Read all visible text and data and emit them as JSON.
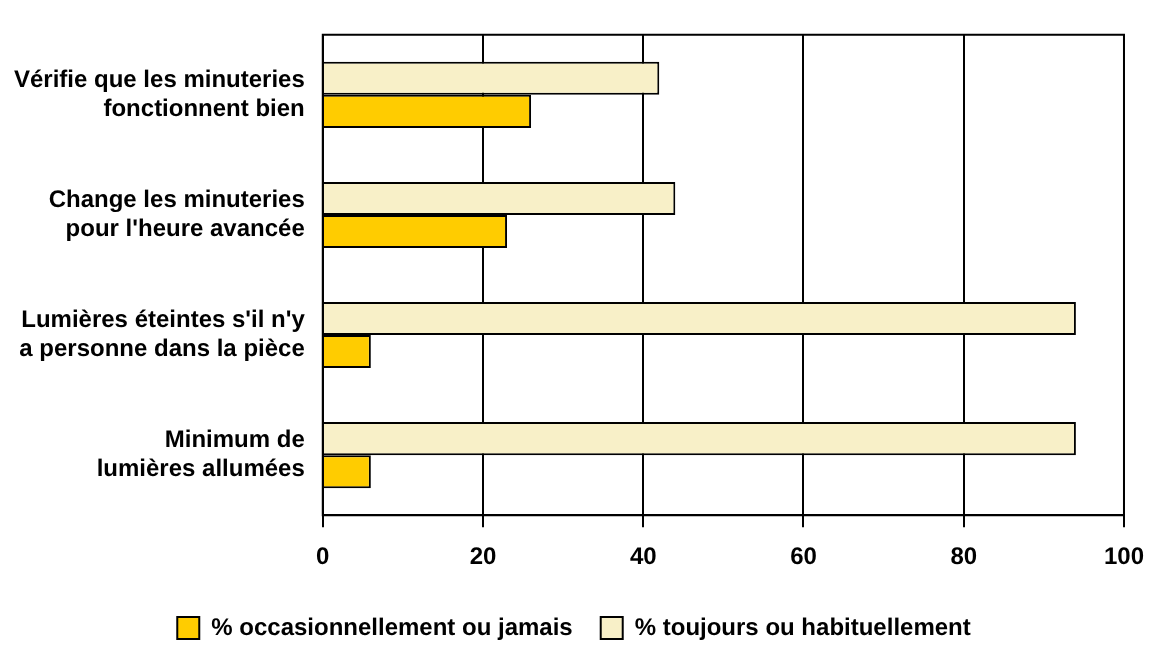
{
  "chart_data": {
    "type": "bar",
    "orientation": "horizontal",
    "categories": [
      [
        "Vérifie que les minuteries",
        "fonctionnent bien"
      ],
      [
        "Change les minuteries",
        "pour l'heure avancée"
      ],
      [
        "Lumières éteintes s'il n'y",
        "a personne dans la pièce"
      ],
      [
        "Minimum de",
        "lumières allumées"
      ]
    ],
    "series": [
      {
        "name": "% toujours ou habituellement",
        "color": "#f8f0c8",
        "values": [
          42,
          44,
          94,
          94
        ]
      },
      {
        "name": "% occasionnellement ou jamais",
        "color": "#ffcc00",
        "values": [
          26,
          23,
          6,
          6
        ]
      }
    ],
    "xlim": [
      0,
      100
    ],
    "xticks": [
      0,
      20,
      40,
      60,
      80,
      100
    ],
    "grid": "x",
    "legend": "bottom"
  }
}
